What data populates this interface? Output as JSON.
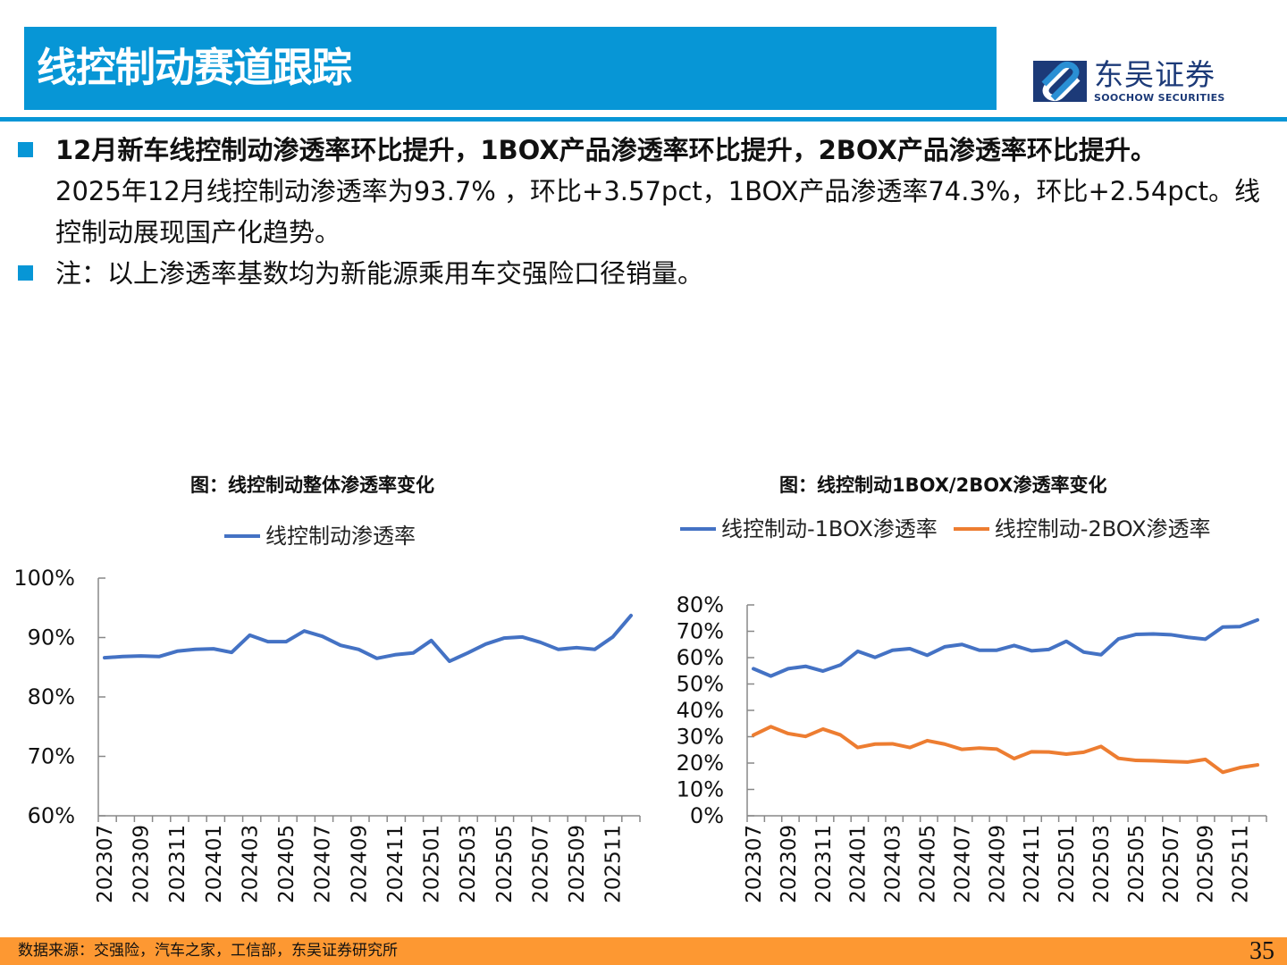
{
  "header": {
    "title": "线控制动赛道跟踪"
  },
  "logo": {
    "cn": "东吴证券",
    "en": "SOOCHOW SECURITIES"
  },
  "bullets": [
    {
      "bold": "12月新车线控制动渗透率环比提升，1BOX产品渗透率环比提升，2BOX产品渗透率环比提升。",
      "text": "2025年12月线控制动渗透率为93.7% ，环比+3.57pct，1BOX产品渗透率74.3%，环比+2.54pct。线控制动展现国产化趋势。"
    },
    {
      "text": "注：以上渗透率基数均为新能源乘用车交强险口径销量。"
    }
  ],
  "footer": {
    "source": "数据来源：交强险，汽车之家，工信部，东吴证券研究所",
    "page": "35"
  },
  "colors": {
    "accent": "#0796d6",
    "footer": "#fd9832",
    "series_blue": "#4472c4",
    "series_orange": "#ed7d31"
  },
  "chart_data": [
    {
      "type": "line",
      "title": "图：线控制动整体渗透率变化",
      "ylim": [
        60,
        100
      ],
      "yticks": [
        "60%",
        "70%",
        "80%",
        "90%",
        "100%"
      ],
      "xticklabels": [
        "202307",
        "202309",
        "202311",
        "202401",
        "202403",
        "202405",
        "202407",
        "202409",
        "202411",
        "202501",
        "202503",
        "202505",
        "202507",
        "202509",
        "202511"
      ],
      "x": [
        "202307",
        "202308",
        "202309",
        "202310",
        "202311",
        "202312",
        "202401",
        "202402",
        "202403",
        "202404",
        "202405",
        "202406",
        "202407",
        "202408",
        "202409",
        "202410",
        "202411",
        "202412",
        "202501",
        "202502",
        "202503",
        "202504",
        "202505",
        "202506",
        "202507",
        "202508",
        "202509",
        "202510",
        "202511",
        "202512"
      ],
      "legend": "top",
      "series": [
        {
          "name": "线控制动渗透率",
          "color": "#4472c4",
          "values": [
            86.6,
            86.8,
            86.9,
            86.8,
            87.7,
            88.0,
            88.1,
            87.5,
            90.4,
            89.3,
            89.3,
            91.1,
            90.2,
            88.7,
            88.0,
            86.5,
            87.1,
            87.4,
            89.5,
            86.0,
            87.4,
            88.9,
            89.9,
            90.1,
            89.2,
            88.0,
            88.3,
            88.0,
            90.1,
            93.7
          ]
        }
      ]
    },
    {
      "type": "line",
      "title": "图：线控制动1BOX/2BOX渗透率变化",
      "ylim": [
        0,
        80
      ],
      "yticks": [
        "0%",
        "10%",
        "20%",
        "30%",
        "40%",
        "50%",
        "60%",
        "70%",
        "80%"
      ],
      "xticklabels": [
        "202307",
        "202309",
        "202311",
        "202401",
        "202403",
        "202405",
        "202407",
        "202409",
        "202411",
        "202501",
        "202503",
        "202505",
        "202507",
        "202509",
        "202511"
      ],
      "x": [
        "202307",
        "202308",
        "202309",
        "202310",
        "202311",
        "202312",
        "202401",
        "202402",
        "202403",
        "202404",
        "202405",
        "202406",
        "202407",
        "202408",
        "202409",
        "202410",
        "202411",
        "202412",
        "202501",
        "202502",
        "202503",
        "202504",
        "202505",
        "202506",
        "202507",
        "202508",
        "202509",
        "202510",
        "202511",
        "202512"
      ],
      "legend": "top",
      "series": [
        {
          "name": "线控制动-1BOX渗透率",
          "color": "#4472c4",
          "values": [
            55.8,
            53.0,
            55.8,
            56.7,
            54.9,
            57.2,
            62.4,
            60.1,
            62.8,
            63.4,
            60.9,
            64.1,
            65.0,
            62.8,
            62.8,
            64.6,
            62.6,
            63.1,
            66.2,
            62.1,
            61.1,
            67.1,
            68.8,
            69.0,
            68.7,
            67.7,
            67.0,
            71.6,
            71.8,
            74.3
          ]
        },
        {
          "name": "线控制动-2BOX渗透率",
          "color": "#ed7d31",
          "values": [
            30.6,
            33.8,
            31.2,
            30.1,
            32.9,
            30.7,
            25.9,
            27.2,
            27.3,
            25.9,
            28.5,
            27.2,
            25.2,
            25.7,
            25.3,
            21.7,
            24.3,
            24.2,
            23.4,
            24.1,
            26.3,
            21.8,
            21.0,
            20.9,
            20.6,
            20.4,
            21.4,
            16.5,
            18.3,
            19.3
          ]
        }
      ]
    }
  ]
}
